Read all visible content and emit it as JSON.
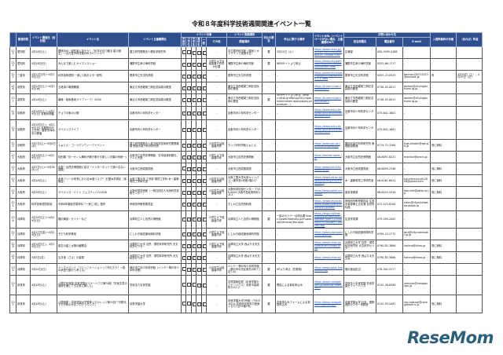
{
  "title": "令和８年度科学技術週間関連イベント一覧",
  "header": {
    "group_target": "イベント対象",
    "group_venue": "イベント実施場所",
    "group_contact": "お問い合わせ先",
    "cols": [
      "",
      "都道府県",
      "イベント開催日（会日程）",
      "イベント名",
      "イベント主催機関名",
      "未就学",
      "小学生",
      "中学生",
      "高校生",
      "一般",
      "その他",
      "開催場所",
      "申込の要否",
      "申込に関する備考",
      "イベントURL（イベントページがない場合、主催機関のHP）",
      "担当部署名",
      "電話番号",
      "E-mail",
      "入館料無料の有無",
      "（あれば）料金"
    ]
  },
  "rows": [
    {
      "no": "113",
      "pref": "愛知県",
      "date": "4月18日(土)",
      "event": "理研DAY：研究者と話そう！「化学の目で観る 星の誕生」〜名古屋市科学館DAYスペシャル〜",
      "org": "国立研究開発法人理化学研究所",
      "checks": [
        0,
        0,
        1,
        1,
        1
      ],
      "other": "-",
      "venue": "名古屋市科学館（現地とオンラインで実施予定）",
      "apply": "要",
      "apply_note": "3月31日（火）",
      "url": "https://www.riken.jp/pr/events/events/20260418_1/index.html",
      "dept": "広報部",
      "tel": "050-3495-0188",
      "email": "-",
      "free": "-",
      "fee": "-"
    },
    {
      "no": "114",
      "pref": "愛知県",
      "date": "4月26日(日)",
      "event": "みんなで楽しむサイエンスショー",
      "org": "蒲郡市生命の海科学館",
      "checks": [
        1,
        1,
        1,
        1,
        1
      ],
      "other": "小学生以下は保護者の同伴が必要",
      "venue": "蒲郡市生命の海科学館",
      "apply": "要",
      "apply_note": "WEBサイトより申込",
      "url": "https://www.city.gamagori.lg.jp/site/kagakukan/event.html",
      "dept": "蒲郡市生命の海科学館",
      "tel": "0533-66-1717",
      "email": "-",
      "free": "-",
      "fee": "-"
    },
    {
      "no": "115",
      "pref": "三重県",
      "date": "4月13日(月)〜4月19日(日)",
      "event": "科学技術週間 一家に1枚ポスター配布",
      "org": "尾鷲市立天文科学館",
      "checks": [
        1,
        1,
        1,
        1,
        1
      ],
      "other": "-",
      "venue": "尾鷲市立天文科学館",
      "apply": "-",
      "apply_note": "-",
      "url": "https://www.city.owase.lg.jp/events/events-0-1-1.html",
      "dept": "尾鷲市立天文科学館",
      "tel": "0597-23-0525",
      "email": "tenmon2023-2023@outlook.jp",
      "free": "有",
      "fee": "4月18日（土）、4月19日（日）"
    },
    {
      "no": "116",
      "pref": "滋賀県",
      "date": "3月28日(土)〜4月30日(木)",
      "event": "五峰貞介戦優勝展",
      "org": "東近江市西堀榮三郎記念探検の殿堂",
      "checks": [
        1,
        1,
        1,
        1,
        1
      ],
      "other": "-",
      "venue": "東近江市西堀榮三郎記念探検の殿堂",
      "apply": "-",
      "apply_note": "-",
      "url": "https://e-omi-muse.com/tanken/",
      "dept": "東近江市西堀榮三郎記念探検の殿堂",
      "tel": "0748-45-0011",
      "email": "tanken@city.higashiomi.lg.jp",
      "free": "-",
      "fee": "-"
    },
    {
      "no": "117",
      "pref": "滋賀県",
      "date": "4月18日(土)",
      "event": "南極・昭和基地ライブトーク！2026",
      "org": "東近江市西堀榮三郎記念探検の殿堂",
      "checks": [
        0,
        1,
        1,
        0,
        0
      ],
      "other": "-",
      "venue": "東近江市西堀榮三郎記念探検の殿堂",
      "apply": "要",
      "apply_note": "市HPサイトより申込（https://ttzk.graffer.jp/city-higashiomi/smart-apply/apply-procedure...）",
      "url": "https://e-omi-muse.com/tanken/",
      "dept": "東近江市西堀榮三郎記念探検の殿堂",
      "tel": "0748-45-0011",
      "email": "tanken@city.higashiomi.lg.jp",
      "free": "-",
      "fee": "-"
    },
    {
      "no": "118",
      "pref": "京都府",
      "date": "4月18日(土)〜4月19日(日) 京都府開催",
      "event": "チョウの家の公開",
      "org": "京都市青少年科学センター",
      "checks": [
        1,
        1,
        1,
        1,
        1
      ],
      "other": "-",
      "venue": "京都市青少年科学センター",
      "apply": "-",
      "apply_note": "-",
      "url": "https://www.edu.city.kyoto.jp/science/event/index.html",
      "dept": "京都市青少年科学センター",
      "tel": "075-642-1601",
      "email": "-",
      "free": "-",
      "fee": "-"
    },
    {
      "no": "119",
      "pref": "京都府",
      "date": "4月18日(土)、4月19日(日) 京都府内の土日祝、春夏冬休み中の開催",
      "event": "サイエンスライブ",
      "org": "京都市青少年科学センター",
      "checks": [
        1,
        1,
        1,
        1,
        1
      ],
      "other": "-",
      "venue": "京都市青少年科学センター",
      "apply": "-",
      "apply_note": "-",
      "url": "https://www.edu.city.kyoto.jp/science/event/index.html",
      "dept": "京都市青少年科学センター",
      "tel": "075-642-1601",
      "email": "-",
      "free": "-",
      "fee": "-"
    },
    {
      "no": "120",
      "pref": "京都府",
      "date": "5月2日(土)〜5月6日(水)",
      "event": "ふぉとん・ゴールデンウィークイベント",
      "org": "国立研究開発法人量子科学技術研究開発機構 関西光量子科学研究所",
      "checks": [
        1,
        1,
        1,
        1,
        1
      ],
      "other": "小中学生は保護者同伴",
      "venue": "きっづ光科学館ふぉとん",
      "apply": "-",
      "apply_note": "-",
      "url": "https://www.qst.go.jp/site/kids-photon/",
      "dept": "関西光量子科学研究所 管理部庶務課",
      "tel": "0774-71-3180",
      "email": "kids-photon@qst.go.jp",
      "free": "常に無料",
      "fee": "-"
    },
    {
      "no": "121",
      "pref": "大阪府",
      "date": "4月18日(土)〜4月19日(日)",
      "event": "特別展「鳥〜ゲノム解析が解き明かす新しい鳥類の系統〜」",
      "org": "大阪市立自然史博物館、日本経済新聞社、テレビ大阪",
      "checks": [
        1,
        1,
        1,
        1,
        1
      ],
      "other": "小学生以下保護者同伴",
      "venue": "大阪市立自然史博物館",
      "apply": "-",
      "apply_note": "-",
      "url": "https://tankan.apha.jp/",
      "dept": "大阪市立自然史博物館",
      "tel": "06-6697-6221",
      "email": "monitor@omnh.jp",
      "free": "-",
      "fee": "-"
    },
    {
      "no": "122",
      "pref": "大阪府",
      "date": "4月7日(火)〜5月26日(火)",
      "event": "出張！自然史博物館に探す「インターネットで調べるない図鑑」",
      "org": "大阪市立西成図書館",
      "checks": [
        0,
        1,
        1,
        1,
        1
      ],
      "other": "-",
      "venue": "大阪市立西成図書館",
      "apply": "-",
      "apply_note": "-",
      "url": "https://www.oml.city.osaka.lg.jp/",
      "dept": "大阪市立西成図書館",
      "tel": "06-6659-2346",
      "email": "-",
      "free": "常に無料",
      "fee": "-"
    },
    {
      "no": "123",
      "pref": "大阪府",
      "date": "4月18日(土)",
      "event": "木造フリーの未来における木造リスク？-石屋木材測定（体験会）",
      "org": "大阪工業大学 工学部 環境工学科 木・建築環境工学研究室",
      "checks": [
        1,
        1,
        1,
        1,
        1
      ],
      "other": "小中学生は保護者同伴",
      "venue": "大阪工業大学大宮キャンパス（東学舎3号館1階ロビー）",
      "apply": "-",
      "apply_note": "-",
      "url": "https://www.oit.ac.jp/japanese/eng/env/index.html",
      "dept": "木・建築環境工学研究室",
      "tel": "06-6167-6024",
      "email": "hal-mercury.oit.2026@gmail.com",
      "free": "常に無料",
      "fee": "-"
    },
    {
      "no": "124",
      "pref": "大阪府",
      "date": "4月18日(土)",
      "event": "サイエンス・メイト フェスティバル2026",
      "org": "大阪科学技術館（一般社団法人大阪科学技術センター）",
      "checks": [
        1,
        1,
        1,
        1,
        1
      ],
      "other": "小中学生は保護者同伴",
      "venue": "大阪科学技術センター 〒550-0004 大阪市西区靭本町1-8-4",
      "apply": "-",
      "apply_note": "-",
      "url": "https://www.ostec.or.jp/pop/",
      "dept": "普及事業部",
      "tel": "06-6443-5318",
      "email": "kan-info@ostec.or.jp",
      "free": "常に無料",
      "fee": "-"
    },
    {
      "no": "125",
      "pref": "大阪府",
      "date": "科学技術週間前後",
      "event": "令和8年度版学習資料「一家に1枚」配布",
      "org": "岸和田市教育委員会",
      "checks": [
        1,
        1,
        1,
        1,
        1
      ],
      "other": "-",
      "venue": "きしわだ自然資料館",
      "apply": "-",
      "apply_note": "-",
      "url": "https://www.city.kishiwada.osaka.jp/site/shizenshiryoukan/",
      "dept": "岸和田市教育委員会 生涯学習部郷土文化課 自然資料館",
      "tel": "072-423-8100",
      "email": "sizen@city.kishiwada.osaka.jp",
      "free": "-",
      "fee": "-"
    },
    {
      "no": "126",
      "pref": "兵庫県",
      "date": "4月18日(土)〜4月19日(日)",
      "event": "展示解説・セミナーなど",
      "org": "兵庫県立人と自然の博物館",
      "checks": [
        1,
        1,
        1,
        1,
        1
      ],
      "other": "小学生以下保護者同伴",
      "venue": "兵庫県立人と自然の博物館",
      "apply": "要",
      "apply_note": "一部のセミナーは申込要 https://www.hitohaku.jp/musepub/Seminar/Top.aspx",
      "url": "https://www.hitohaku.jp/MusePub/EventCalendar?year=2026&month=04&day=18&cat=top",
      "dept": "生涯学習課",
      "tel": "079-559-2002",
      "email": "-",
      "free": "-",
      "fee": "-"
    },
    {
      "no": "127",
      "pref": "兵庫県",
      "date": "4月17日(金)〜4月19日(日)",
      "event": "子ども科学教室",
      "org": "にしわき経緯度地球科学館",
      "checks": [
        1,
        1,
        1,
        1,
        1
      ],
      "other": "小学生以下保護者同伴",
      "venue": "にしわき経緯度地球科学館",
      "apply": "-",
      "apply_note": "-",
      "url": "https://www.nishiwaki-cs.or.jp/tera/",
      "dept": "にしわき経緯度地球科学館",
      "tel": "0795-23-2772",
      "email": "tera@city.nishiwaki.lg.jp",
      "free": "-",
      "fee": "-"
    },
    {
      "no": "128",
      "pref": "兵庫県",
      "date": "4月18日(土)、4月19日(日)",
      "event": "星空の星と太陽の観察会",
      "org": "兵庫県立大学 自然・環境科学研究所 天文科学センター",
      "checks": [
        1,
        1,
        1,
        1,
        1
      ],
      "other": "小学生以下保護者同伴",
      "venue": "兵庫県立大学 西はりま天文台",
      "apply": "-",
      "apply_note": "-",
      "url": "https://www.nhao.jp/nhao/event/index.html",
      "dept": "兵庫県立大学 自然・環境科学研究所 天文科学センター",
      "tel": "0790-82-3886",
      "email": "harima@nhao.jp",
      "free": "常に無料",
      "fee": "-"
    },
    {
      "no": "129",
      "pref": "兵庫県",
      "date": "5月4日(月)",
      "event": "五月食（さよ）の星祭",
      "org": "兵庫県立大学 自然・環境科学研究所 天文科学センター",
      "checks": [
        1,
        1,
        1,
        1,
        1
      ],
      "other": "-",
      "venue": "兵庫県立大学 西はりま天文台",
      "apply": "-",
      "apply_note": "-",
      "url": "https://www.nhao.jp/",
      "dept": "兵庫県立大学 西はりま天文台",
      "tel": "0790-82-3886",
      "email": "harima@nhao.jp",
      "free": "常に無料",
      "fee": "-"
    },
    {
      "no": "130",
      "pref": "兵庫県",
      "date": "5月24日(日)",
      "event": "トークイベント「コミュニケーションって何だろう？〜魚の求愛行動から考える」",
      "org": "神戸市立青少年科学館（バンドー神戸青少年科学館）",
      "checks": [
        0,
        1,
        1,
        1,
        1
      ],
      "other": "小中学生は保護者同伴",
      "venue": "バンドー神戸青少年科学館（神戸市中央区港島中町7丁目7-6）",
      "apply": "要",
      "apply_note": "HPより申込（先着順）",
      "url": "https://www.kobe-kagakukan.jp/",
      "dept": "展示普及担当",
      "tel": "078-302-5177",
      "email": "-",
      "free": "-",
      "fee": "-"
    },
    {
      "no": "131",
      "pref": "奈良県",
      "date": "4月18日(土)",
      "event": "公開文化講座-奈良学園セミナーハウス第58回「奈良文書の講読を通して古文書に親しむ」",
      "org": "学校法人奈良学園",
      "checks": [
        0,
        0,
        0,
        1,
        1
      ],
      "other": "-",
      "venue": "志賀直哉旧居（奈良学園セミナーハウス）奈良市高畑町1237-2",
      "apply": "要",
      "apply_note": "電話による事前申込み",
      "url": "https://www.naragakuen.jp/seminar/index.html",
      "dept": "学校法人奈良学園 奈良学園セミナーハウス",
      "tel": "0742-26-6490",
      "email": "seminar@naragakuen.jp",
      "free": "-",
      "fee": "-"
    },
    {
      "no": "132",
      "pref": "奈良県",
      "date": "4月18日(土)",
      "event": "公開講座・奈良学園大学登美ヶ丘カレッジ第31回「可視光でも分析のみるプログラミング」",
      "org": "奈良学園大学",
      "checks": [
        0,
        0,
        1,
        1,
        1
      ],
      "other": "-",
      "venue": "奈良学園大学3号館（〒631-8524 奈良県奈良市中登美ヶ丘3丁目15番1号）",
      "apply": "要",
      "apply_note": "奈良申込みフォームによる事前申込み",
      "url": "https://www.naragakuen-u.jp/college/",
      "dept": "奈良学園大学 社会・国際連携センター事務室",
      "tel": "0742-93-5405",
      "email": "npr-hokusai@naragakuen-u.jp",
      "free": "常に無料",
      "fee": "-"
    }
  ],
  "logo": "ReseMom",
  "colors": {
    "header": "#2f4f8f",
    "link": "#1f4fbf",
    "logo": "#2b5f7a"
  }
}
